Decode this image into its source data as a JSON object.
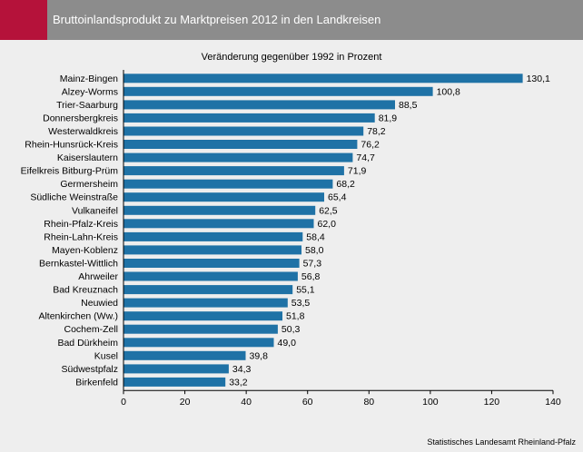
{
  "header": {
    "title": "Bruttoinlandsprodukt zu Marktpreisen 2012 in den Landkreisen"
  },
  "source": "Statistisches Landesamt Rheinland-Pfalz",
  "colors": {
    "bar": "#1f72a6",
    "header_bg": "#8c8c8c",
    "header_accent": "#b5123a",
    "background": "#eeeeee"
  },
  "chart_data": {
    "type": "bar",
    "orientation": "horizontal",
    "title": "Bruttoinlandsprodukt zu Marktpreisen 2012 in den Landkreisen",
    "subtitle": "Veränderung gegenüber 1992 in Prozent",
    "categories": [
      "Mainz-Bingen",
      "Alzey-Worms",
      "Trier-Saarburg",
      "Donnersbergkreis",
      "Westerwaldkreis",
      "Rhein-Hunsrück-Kreis",
      "Kaiserslautern",
      "Eifelkreis Bitburg-Prüm",
      "Germersheim",
      "Südliche Weinstraße",
      "Vulkaneifel",
      "Rhein-Pfalz-Kreis",
      "Rhein-Lahn-Kreis",
      "Mayen-Koblenz",
      "Bernkastel-Wittlich",
      "Ahrweiler",
      "Bad Kreuznach",
      "Neuwied",
      "Altenkirchen (Ww.)",
      "Cochem-Zell",
      "Bad Dürkheim",
      "Kusel",
      "Südwestpfalz",
      "Birkenfeld"
    ],
    "values": [
      130.1,
      100.8,
      88.5,
      81.9,
      78.2,
      76.2,
      74.7,
      71.9,
      68.2,
      65.4,
      62.5,
      62.0,
      58.4,
      58.0,
      57.3,
      56.8,
      55.1,
      53.5,
      51.8,
      50.3,
      49.0,
      39.8,
      34.3,
      33.2
    ],
    "value_labels": [
      "130,1",
      "100,8",
      "88,5",
      "81,9",
      "78,2",
      "76,2",
      "74,7",
      "71,9",
      "68,2",
      "65,4",
      "62,5",
      "62,0",
      "58,4",
      "58,0",
      "57,3",
      "56,8",
      "55,1",
      "53,5",
      "51,8",
      "50,3",
      "49,0",
      "39,8",
      "34,3",
      "33,2"
    ],
    "xlim": [
      0,
      140
    ],
    "xticks": [
      "0",
      "20",
      "40",
      "60",
      "80",
      "100",
      "120",
      "140"
    ],
    "grid": false,
    "legend": "none"
  }
}
